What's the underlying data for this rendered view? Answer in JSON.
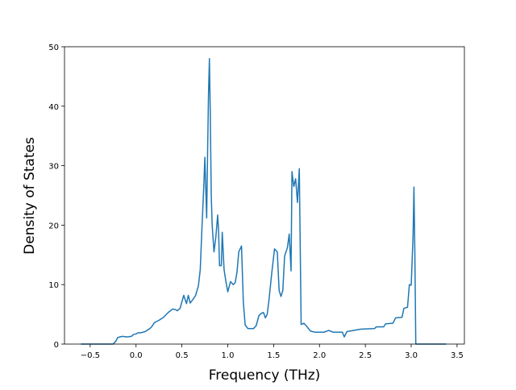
{
  "chart_data": {
    "type": "line",
    "xlabel": "Frequency (THz)",
    "ylabel": "Density of States",
    "x": [
      -0.6,
      -0.5,
      -0.25,
      -0.22,
      -0.2,
      -0.15,
      -0.1,
      -0.05,
      -0.03,
      0.0,
      0.02,
      0.05,
      0.1,
      0.15,
      0.17,
      0.2,
      0.25,
      0.3,
      0.35,
      0.4,
      0.43,
      0.45,
      0.48,
      0.52,
      0.55,
      0.57,
      0.59,
      0.62,
      0.65,
      0.68,
      0.7,
      0.72,
      0.74,
      0.75,
      0.77,
      0.78,
      0.79,
      0.8,
      0.81,
      0.82,
      0.83,
      0.85,
      0.87,
      0.89,
      0.9,
      0.91,
      0.93,
      0.94,
      0.96,
      0.98,
      1.0,
      1.03,
      1.06,
      1.08,
      1.1,
      1.12,
      1.15,
      1.17,
      1.19,
      1.22,
      1.28,
      1.31,
      1.34,
      1.37,
      1.39,
      1.41,
      1.43,
      1.45,
      1.48,
      1.51,
      1.54,
      1.56,
      1.58,
      1.6,
      1.62,
      1.65,
      1.67,
      1.69,
      1.7,
      1.72,
      1.74,
      1.76,
      1.78,
      1.8,
      1.83,
      1.86,
      1.9,
      1.95,
      2.05,
      2.1,
      2.15,
      2.25,
      2.27,
      2.3,
      2.45,
      2.6,
      2.62,
      2.7,
      2.72,
      2.8,
      2.83,
      2.9,
      2.92,
      2.96,
      2.98,
      3.0,
      3.02,
      3.03,
      3.04,
      3.05,
      3.2,
      3.38
    ],
    "series": [
      {
        "color": "#1f77b4",
        "values": [
          0,
          0,
          0,
          0.5,
          1.1,
          1.3,
          1.2,
          1.3,
          1.6,
          1.7,
          1.9,
          1.9,
          2.1,
          2.6,
          2.9,
          3.6,
          4.0,
          4.5,
          5.3,
          5.9,
          5.8,
          5.6,
          6.0,
          8.2,
          6.8,
          8.2,
          6.9,
          7.5,
          8.2,
          9.8,
          12.5,
          20,
          27,
          31.4,
          21.2,
          32,
          42,
          48,
          38,
          25,
          20,
          15.5,
          18,
          21.7,
          19,
          13.2,
          13.2,
          18.8,
          12.5,
          10.5,
          8.8,
          10.5,
          10,
          10.3,
          12,
          15.5,
          16.5,
          7,
          3.2,
          2.6,
          2.6,
          3.1,
          4.8,
          5.2,
          5.3,
          4.4,
          5,
          7.5,
          12,
          16,
          15.5,
          9,
          8,
          9,
          14.8,
          16.2,
          18.5,
          12.3,
          29,
          26.5,
          27.8,
          23.8,
          29.5,
          3.3,
          3.5,
          3,
          2.2,
          2,
          2,
          2.3,
          2,
          2,
          1.2,
          2.1,
          2.5,
          2.6,
          2.9,
          2.9,
          3.4,
          3.5,
          4.4,
          4.5,
          6,
          6.2,
          10,
          9.9,
          18,
          26.4,
          15,
          0,
          0,
          0
        ]
      }
    ],
    "xlim": [
      -0.78,
      3.58
    ],
    "ylim": [
      0,
      50
    ],
    "xticks": [
      {
        "value": -0.5,
        "label": "−0.5"
      },
      {
        "value": 0,
        "label": "0.0"
      },
      {
        "value": 0.5,
        "label": "0.5"
      },
      {
        "value": 1,
        "label": "1.0"
      },
      {
        "value": 1.5,
        "label": "1.5"
      },
      {
        "value": 2,
        "label": "2.0"
      },
      {
        "value": 2.5,
        "label": "2.5"
      },
      {
        "value": 3,
        "label": "3.0"
      },
      {
        "value": 3.5,
        "label": "3.5"
      }
    ],
    "yticks": [
      0,
      10,
      20,
      30,
      40,
      50
    ]
  }
}
